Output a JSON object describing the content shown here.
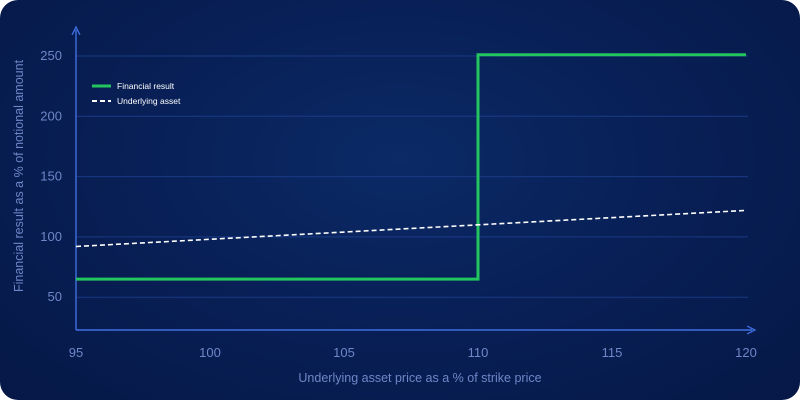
{
  "chart_data": {
    "type": "line",
    "xlabel": "Underlying asset price as a % of strike price",
    "ylabel": "Financial result as a % of notional amount",
    "x_ticks": [
      95,
      100,
      105,
      110,
      115,
      120
    ],
    "y_ticks": [
      50,
      100,
      150,
      200,
      250
    ],
    "xlim": [
      95,
      120
    ],
    "ylim": [
      30,
      260
    ],
    "grid": true,
    "legend_position": "top-left",
    "series": [
      {
        "name": "Financial result",
        "color": "#22c55e",
        "style": "solid",
        "x": [
          95,
          110,
          110,
          120
        ],
        "y": [
          65,
          65,
          251,
          251
        ]
      },
      {
        "name": "Underlying asset",
        "color": "#ffffff",
        "style": "dashed",
        "x": [
          95,
          120
        ],
        "y": [
          92,
          122
        ]
      }
    ]
  }
}
